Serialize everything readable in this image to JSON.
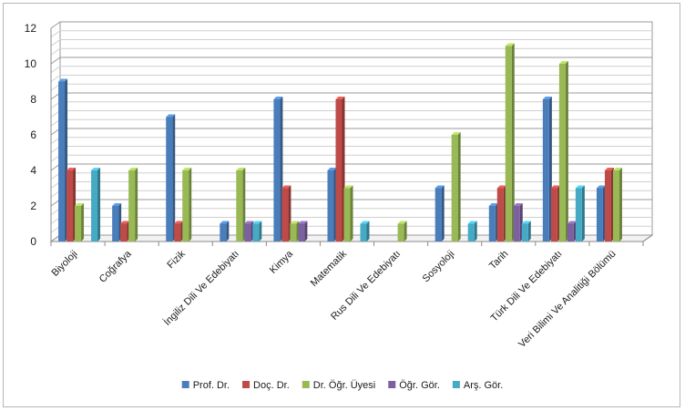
{
  "chart_data": {
    "type": "bar",
    "categories": [
      "Biyoloji",
      "Coğrafya",
      "Fizik",
      "İngiliz Dili Ve Edebiyatı",
      "Kimya",
      "Matematik",
      "Rus Dili Ve Edebiyatı",
      "Sosyoloji",
      "Tarih",
      "Türk Dili Ve Edebiyatı",
      "Veri Bilimi Ve Analitiği Bölümü"
    ],
    "series": [
      {
        "name": "Prof. Dr.",
        "color": "#4A7EBB",
        "values": [
          9,
          2,
          7,
          1,
          8,
          4,
          0,
          3,
          2,
          8,
          3
        ]
      },
      {
        "name": "Doç. Dr.",
        "color": "#BE4B48",
        "values": [
          4,
          1,
          1,
          0,
          3,
          8,
          0,
          0,
          3,
          3,
          4
        ]
      },
      {
        "name": "Dr. Öğr. Üyesi",
        "color": "#98B954",
        "values": [
          2,
          4,
          4,
          4,
          1,
          3,
          1,
          6,
          11,
          10,
          4
        ]
      },
      {
        "name": "Öğr. Gör.",
        "color": "#7D60A0",
        "values": [
          0,
          0,
          0,
          1,
          1,
          0,
          0,
          0,
          2,
          1,
          0
        ]
      },
      {
        "name": "Arş. Gör.",
        "color": "#46AAC5",
        "values": [
          4,
          0,
          0,
          1,
          0,
          1,
          0,
          1,
          1,
          3,
          0
        ]
      }
    ],
    "y_ticks": [
      "0",
      "2",
      "4",
      "6",
      "8",
      "10",
      "12"
    ],
    "ylim": [
      0,
      12
    ],
    "grid": true,
    "legend_position": "bottom"
  }
}
